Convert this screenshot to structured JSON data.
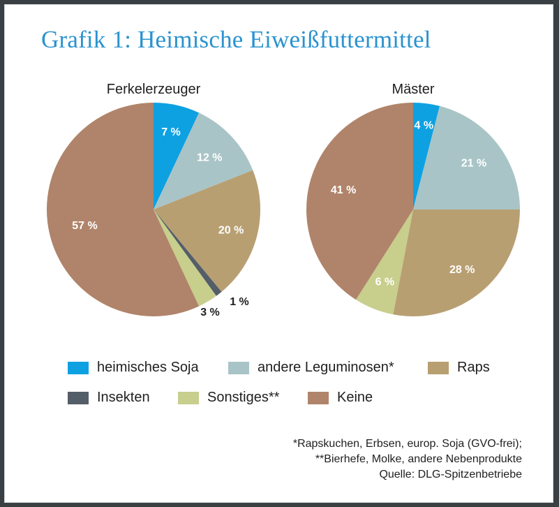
{
  "title": "Grafik 1: Heimische Eiweißfuttermittel",
  "colors": {
    "heimisches_soja": "#0ea1e2",
    "andere_leguminosen": "#a9c4c6",
    "raps": "#b89f72",
    "insekten": "#545e68",
    "sonstiges": "#c8ce8c",
    "keine": "#b0846a"
  },
  "legend": [
    {
      "label": "heimisches Soja",
      "color": "#0ea1e2"
    },
    {
      "label": "andere Leguminosen*",
      "color": "#a9c4c6"
    },
    {
      "label": "Raps",
      "color": "#b89f72"
    },
    {
      "label": "Insekten",
      "color": "#545e68"
    },
    {
      "label": "Sonstiges**",
      "color": "#c8ce8c"
    },
    {
      "label": "Keine",
      "color": "#b0846a"
    }
  ],
  "footnotes": [
    "*Rapskuchen, Erbsen, europ. Soja (GVO-frei);",
    "**Bierhefe, Molke, andere Nebenprodukte",
    "Quelle: DLG-Spitzenbetriebe"
  ],
  "chart_data": [
    {
      "type": "pie",
      "title": "Ferkelerzeuger",
      "categories": [
        "heimisches Soja",
        "andere Leguminosen*",
        "Raps",
        "Insekten",
        "Sonstiges**",
        "Keine"
      ],
      "values": [
        7,
        12,
        20,
        1,
        3,
        57
      ],
      "labels": [
        "7 %",
        "12 %",
        "20 %",
        "1 %",
        "3 %",
        "57 %"
      ],
      "unit": "%"
    },
    {
      "type": "pie",
      "title": "Mäster",
      "categories": [
        "heimisches Soja",
        "andere Leguminosen*",
        "Raps",
        "Sonstiges**",
        "Keine"
      ],
      "values": [
        4,
        21,
        28,
        6,
        41
      ],
      "labels": [
        "4 %",
        "21 %",
        "28 %",
        "6 %",
        "41 %"
      ],
      "unit": "%"
    }
  ]
}
